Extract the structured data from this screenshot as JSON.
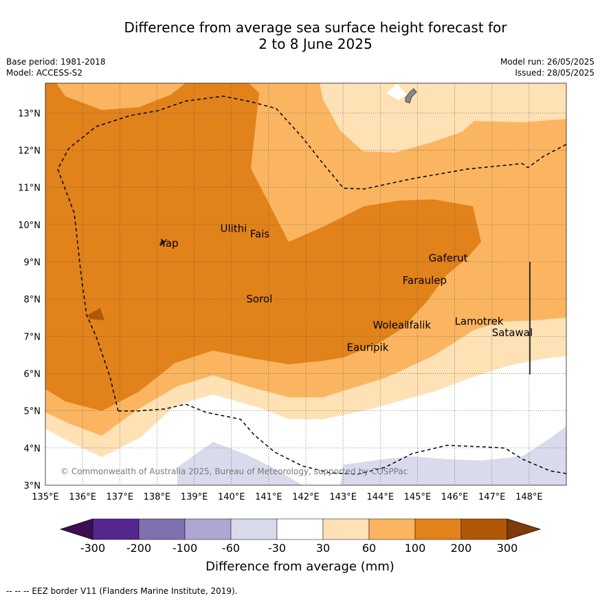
{
  "title_line1": "Difference from average sea surface height forecast for",
  "title_line2": "2 to 8 June 2025",
  "base_period": "Base period: 1981-2018",
  "model": "Model: ACCESS-S2",
  "model_run": "Model run: 26/05/2025",
  "issued": "Issued: 28/05/2025",
  "copyright": "© Commonwealth of Australia 2025, Bureau of Meteorology, supported by COSPPac",
  "map": {
    "lon_range": [
      135,
      149
    ],
    "lat_range": [
      3,
      13.8
    ],
    "lon_ticks": [
      "135°E",
      "136°E",
      "137°E",
      "138°E",
      "139°E",
      "140°E",
      "141°E",
      "142°E",
      "143°E",
      "144°E",
      "145°E",
      "146°E",
      "147°E",
      "148°E"
    ],
    "lat_ticks": [
      "3°N",
      "4°N",
      "5°N",
      "6°N",
      "7°N",
      "8°N",
      "9°N",
      "10°N",
      "11°N",
      "12°N",
      "13°N"
    ],
    "places": [
      {
        "name": "Yap",
        "lon": 138.1,
        "lat": 9.5
      },
      {
        "name": "Ulithi",
        "lon": 139.7,
        "lat": 9.9
      },
      {
        "name": "Fais",
        "lon": 140.5,
        "lat": 9.75
      },
      {
        "name": "Gaferut",
        "lon": 145.3,
        "lat": 9.1
      },
      {
        "name": "Faraulep",
        "lon": 144.6,
        "lat": 8.5
      },
      {
        "name": "Sorol",
        "lon": 140.4,
        "lat": 8.0
      },
      {
        "name": "Lamotrek",
        "lon": 146.0,
        "lat": 7.4
      },
      {
        "name": "Woleai",
        "lon": 143.8,
        "lat": 7.3
      },
      {
        "name": "Ifalik",
        "lon": 144.7,
        "lat": 7.3
      },
      {
        "name": "Satawal",
        "lon": 147.0,
        "lat": 7.1
      },
      {
        "name": "Eauripik",
        "lon": 143.1,
        "lat": 6.7
      }
    ]
  },
  "colorbar": {
    "ticks": [
      "-300",
      "-200",
      "-100",
      "-60",
      "-30",
      "30",
      "60",
      "100",
      "200",
      "300"
    ],
    "colors": [
      "#3b0f52",
      "#54278f",
      "#7f71ae",
      "#afa7d1",
      "#d9daeb",
      "#ffffff",
      "#fee1b5",
      "#fbb560",
      "#e1821a",
      "#b05808",
      "#7f3b09"
    ],
    "label": "Difference from average (mm)"
  },
  "footnote": "-- -- -- EEZ border V11 (Flanders Marine Institute, 2019)."
}
